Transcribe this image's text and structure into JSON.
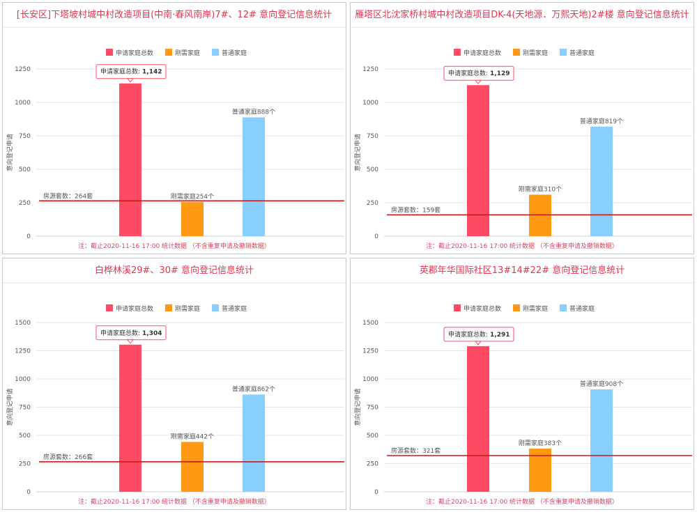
{
  "colors": {
    "title": "#e0364f",
    "footnote": "#d64560",
    "series": [
      "#ff4a63",
      "#ff9812",
      "#88cfff"
    ],
    "refline": "#c5171c",
    "grid": "#e4e4e4",
    "tick_left": "#5b9bd5",
    "tick_right": "#8a8a8a"
  },
  "chart_data": [
    {
      "type": "bar",
      "title": "[长安区]下塔坡村城中村改造项目(中南·春风南岸)7#、12# 意向登记信息统计",
      "ylabel": "意向登记申请",
      "legend": [
        "申请家庭总数",
        "刚需家庭",
        "普通家庭"
      ],
      "legend_position": "top",
      "grid": true,
      "ylim": [
        0,
        1250
      ],
      "yticks": [
        "0",
        "250",
        "500",
        "750",
        "1000",
        "1250"
      ],
      "values": [
        1142,
        254,
        888
      ],
      "bar_labels": [
        "",
        "刚需家庭254个",
        "普通家庭888个"
      ],
      "tooltip_label": "申请家庭总数:",
      "tooltip_value": "1,142",
      "reference_line": {
        "value": 264,
        "label": "房源套数：264套"
      },
      "footnote": "注：截止2020-11-16 17:00 统计数据 （不含重复申请及撤销数据）"
    },
    {
      "type": "bar",
      "title": "雁塔区北沈家桥村城中村改造项目DK-4(天地源．万熙天地)2#楼 意向登记信息统计",
      "ylabel": "意向登记申请",
      "legend": [
        "申请家庭总数",
        "刚需家庭",
        "普通家庭"
      ],
      "legend_position": "top",
      "grid": true,
      "ylim": [
        0,
        1250
      ],
      "yticks": [
        "0",
        "250",
        "500",
        "750",
        "1000",
        "1250"
      ],
      "values": [
        1129,
        310,
        819
      ],
      "bar_labels": [
        "",
        "刚需家庭310个",
        "普通家庭819个"
      ],
      "tooltip_label": "申请家庭总数:",
      "tooltip_value": "1,129",
      "reference_line": {
        "value": 159,
        "label": "房源套数：159套"
      },
      "footnote": "注：截止2020-11-16 17:00 统计数据 （不含重复申请及撤销数据）"
    },
    {
      "type": "bar",
      "title": "白桦林溪29#、30# 意向登记信息统计",
      "ylabel": "意向登记申请",
      "legend": [
        "申请家庭总数",
        "刚需家庭",
        "普通家庭"
      ],
      "legend_position": "top",
      "grid": true,
      "ylim": [
        0,
        1500
      ],
      "yticks": [
        "0",
        "250",
        "500",
        "750",
        "1000",
        "1250",
        "1500"
      ],
      "values": [
        1304,
        442,
        862
      ],
      "bar_labels": [
        "",
        "刚需家庭442个",
        "普通家庭862个"
      ],
      "tooltip_label": "申请家庭总数:",
      "tooltip_value": "1,304",
      "reference_line": {
        "value": 266,
        "label": "房源套数：266套"
      },
      "footnote": "注：截止2020-11-16 17:00 统计数据 （不含重复申请及撤销数据）"
    },
    {
      "type": "bar",
      "title": "英郡年华国际社区13#14#22# 意向登记信息统计",
      "ylabel": "意向登记申请",
      "legend": [
        "申请家庭总数",
        "刚需家庭",
        "普通家庭"
      ],
      "legend_position": "top",
      "grid": true,
      "ylim": [
        0,
        1500
      ],
      "yticks": [
        "0",
        "250",
        "500",
        "750",
        "1000",
        "1250",
        "1500"
      ],
      "values": [
        1291,
        383,
        908
      ],
      "bar_labels": [
        "",
        "刚需家庭383个",
        "普通家庭908个"
      ],
      "tooltip_label": "申请家庭总数:",
      "tooltip_value": "1,291",
      "reference_line": {
        "value": 321,
        "label": "房源套数：321套"
      },
      "footnote": "注：截止2020-11-16 17:00 统计数据 （不含重复申请及撤销数据）"
    }
  ]
}
